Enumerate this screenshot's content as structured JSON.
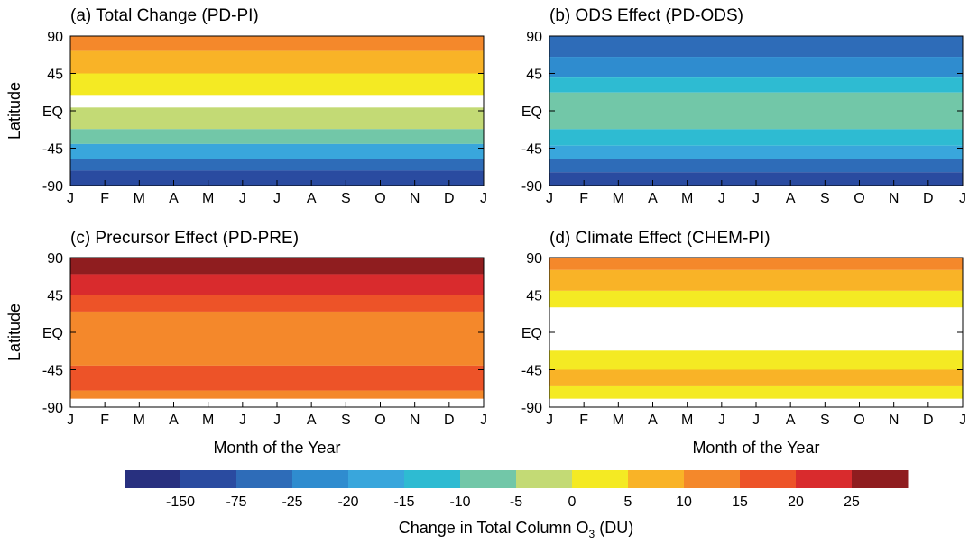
{
  "chart_data": {
    "type": "heatmap",
    "months": [
      "J",
      "F",
      "M",
      "A",
      "M",
      "J",
      "J",
      "A",
      "S",
      "O",
      "N",
      "D",
      "J"
    ],
    "latitude_ticks": [
      "90",
      "45",
      "EQ",
      "-45",
      "-90"
    ],
    "xlabel": "Month of the Year",
    "ylabel": "Latitude",
    "colorbar": {
      "label_main": "Change in Total Column O",
      "label_sub": "3",
      "label_unit": " (DU)",
      "colors": [
        "#28307f",
        "#2a4ba0",
        "#2e6cb8",
        "#2f8ccf",
        "#39a6dc",
        "#2ebbd2",
        "#72c7a8",
        "#c3da75",
        "#f4ea23",
        "#f9b327",
        "#f4882b",
        "#ed5328",
        "#d92b2d",
        "#8f1d1f"
      ],
      "tick_labels": [
        "-150",
        "-75",
        "-25",
        "-20",
        "-15",
        "-10",
        "-5",
        "0",
        "5",
        "10",
        "15",
        "20",
        "25"
      ]
    },
    "panels": [
      {
        "title": "(a) Total Change (PD-PI)",
        "show_ylabel": true,
        "show_xlabel": false,
        "bands": [
          {
            "lat_min": 72,
            "lat_max": 90,
            "color": "#f4882b"
          },
          {
            "lat_min": 45,
            "lat_max": 72,
            "color": "#f9b327"
          },
          {
            "lat_min": 18,
            "lat_max": 45,
            "color": "#f4ea23"
          },
          {
            "lat_min": 4,
            "lat_max": 18,
            "color": "#ffffff"
          },
          {
            "lat_min": -22,
            "lat_max": 4,
            "color": "#c3da75"
          },
          {
            "lat_min": -40,
            "lat_max": -22,
            "color": "#72c7a8"
          },
          {
            "lat_min": -58,
            "lat_max": -40,
            "color": "#39a6dc"
          },
          {
            "lat_min": -72,
            "lat_max": -58,
            "color": "#2e6cb8"
          },
          {
            "lat_min": -90,
            "lat_max": -72,
            "color": "#2a4ba0"
          }
        ]
      },
      {
        "title": "(b) ODS Effect (PD-ODS)",
        "show_ylabel": false,
        "show_xlabel": false,
        "bands": [
          {
            "lat_min": 65,
            "lat_max": 90,
            "color": "#2e6cb8"
          },
          {
            "lat_min": 40,
            "lat_max": 65,
            "color": "#2f8ccf"
          },
          {
            "lat_min": 22,
            "lat_max": 40,
            "color": "#2ebbd2"
          },
          {
            "lat_min": -22,
            "lat_max": 22,
            "color": "#72c7a8"
          },
          {
            "lat_min": -42,
            "lat_max": -22,
            "color": "#2ebbd2"
          },
          {
            "lat_min": -58,
            "lat_max": -42,
            "color": "#39a6dc"
          },
          {
            "lat_min": -74,
            "lat_max": -58,
            "color": "#2e6cb8"
          },
          {
            "lat_min": -90,
            "lat_max": -74,
            "color": "#2a4ba0"
          }
        ]
      },
      {
        "title": "(c) Precursor Effect (PD-PRE)",
        "show_ylabel": true,
        "show_xlabel": true,
        "bands": [
          {
            "lat_min": 70,
            "lat_max": 90,
            "color": "#8f1d1f"
          },
          {
            "lat_min": 45,
            "lat_max": 70,
            "color": "#d92b2d"
          },
          {
            "lat_min": 25,
            "lat_max": 45,
            "color": "#ed5328"
          },
          {
            "lat_min": -40,
            "lat_max": 25,
            "color": "#f4882b"
          },
          {
            "lat_min": -70,
            "lat_max": -40,
            "color": "#ed5328"
          },
          {
            "lat_min": -80,
            "lat_max": -70,
            "color": "#f4882b"
          },
          {
            "lat_min": -90,
            "lat_max": -80,
            "color": "#ffffff"
          }
        ]
      },
      {
        "title": "(d) Climate Effect (CHEM-PI)",
        "show_ylabel": false,
        "show_xlabel": true,
        "bands": [
          {
            "lat_min": 75,
            "lat_max": 90,
            "color": "#f4882b"
          },
          {
            "lat_min": 50,
            "lat_max": 75,
            "color": "#f9b327"
          },
          {
            "lat_min": 30,
            "lat_max": 50,
            "color": "#f4ea23"
          },
          {
            "lat_min": -22,
            "lat_max": 30,
            "color": "#ffffff"
          },
          {
            "lat_min": -45,
            "lat_max": -22,
            "color": "#f4ea23"
          },
          {
            "lat_min": -65,
            "lat_max": -45,
            "color": "#f9b327"
          },
          {
            "lat_min": -80,
            "lat_max": -65,
            "color": "#f4ea23"
          },
          {
            "lat_min": -90,
            "lat_max": -80,
            "color": "#ffffff"
          }
        ]
      }
    ]
  }
}
